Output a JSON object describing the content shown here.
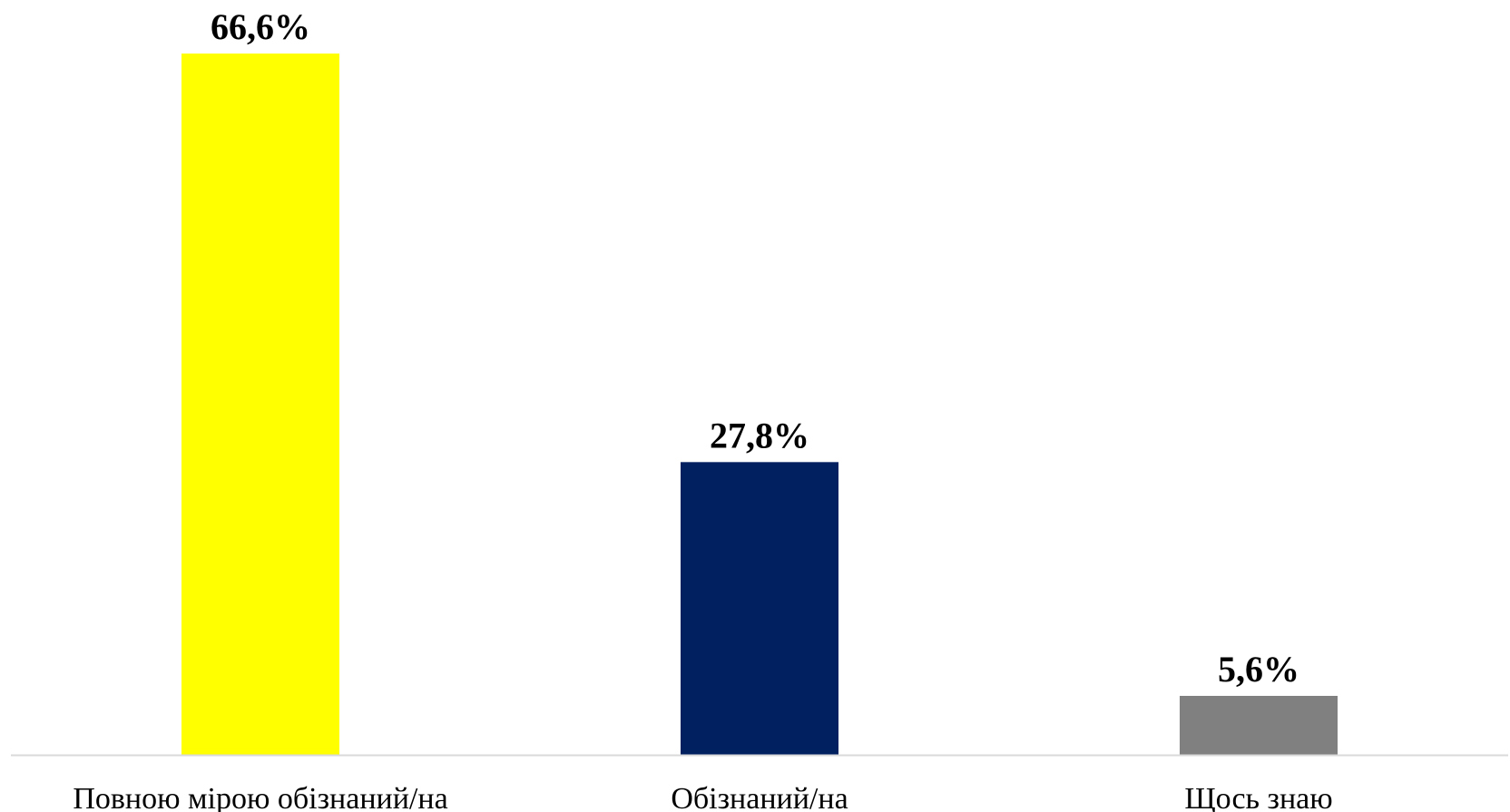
{
  "chart_data": {
    "type": "bar",
    "categories": [
      "Повною мірою обізнаний/на",
      "Обізнаний/на",
      "Щось знаю"
    ],
    "values": [
      66.6,
      27.8,
      5.6
    ],
    "value_labels": [
      "66,6%",
      "27,8%",
      "5,6%"
    ],
    "colors": [
      "#FFFF00",
      "#002060",
      "#808080"
    ],
    "ylim": [
      0,
      66.6
    ],
    "grid": false,
    "legend": "none",
    "xlabel": "",
    "ylabel": "",
    "title": ""
  },
  "colors": {
    "axis_line": "#d9d9d9"
  }
}
